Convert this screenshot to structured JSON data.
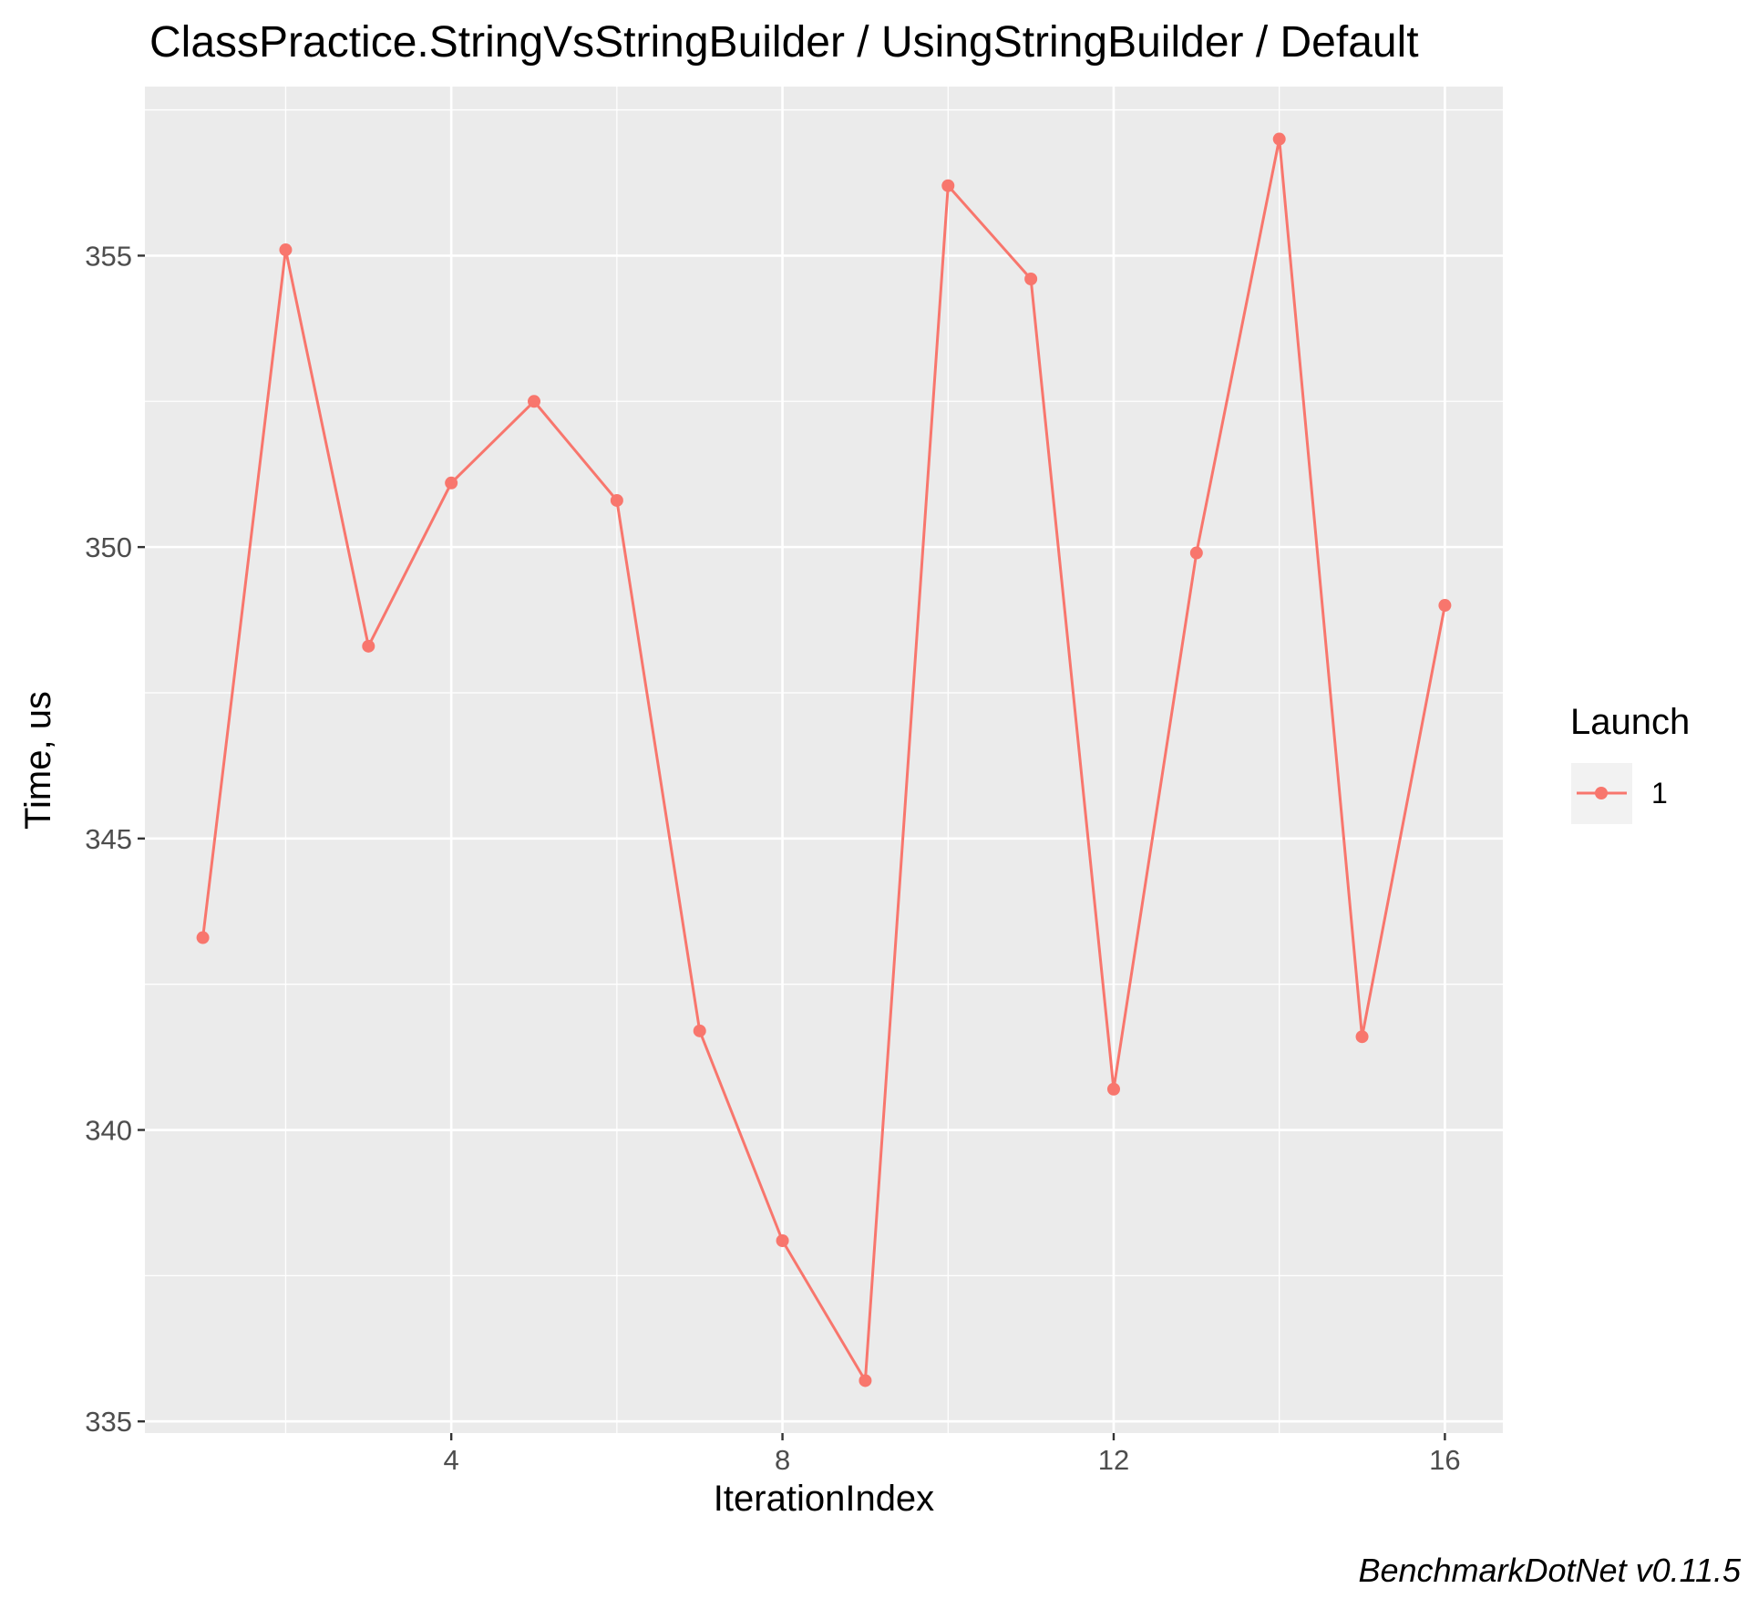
{
  "chart_data": {
    "type": "line",
    "title": "ClassPractice.StringVsStringBuilder / UsingStringBuilder / Default",
    "xlabel": "IterationIndex",
    "ylabel": "Time, us",
    "caption": "BenchmarkDotNet v0.11.5",
    "x_ticks": [
      4,
      8,
      12,
      16
    ],
    "y_ticks": [
      335,
      340,
      345,
      350,
      355
    ],
    "xlim": [
      0.3,
      16.7
    ],
    "ylim": [
      334.8,
      357.9
    ],
    "grid": true,
    "legend": {
      "title": "Launch",
      "position": "right"
    },
    "series": [
      {
        "name": "1",
        "color": "#F8766D",
        "x": [
          1,
          2,
          3,
          4,
          5,
          6,
          7,
          8,
          9,
          10,
          11,
          12,
          13,
          14,
          15,
          16
        ],
        "values": [
          343.3,
          355.1,
          348.3,
          351.1,
          352.5,
          350.8,
          341.7,
          338.1,
          335.7,
          356.2,
          354.6,
          340.7,
          349.9,
          357.0,
          341.6,
          349.0
        ]
      }
    ]
  }
}
